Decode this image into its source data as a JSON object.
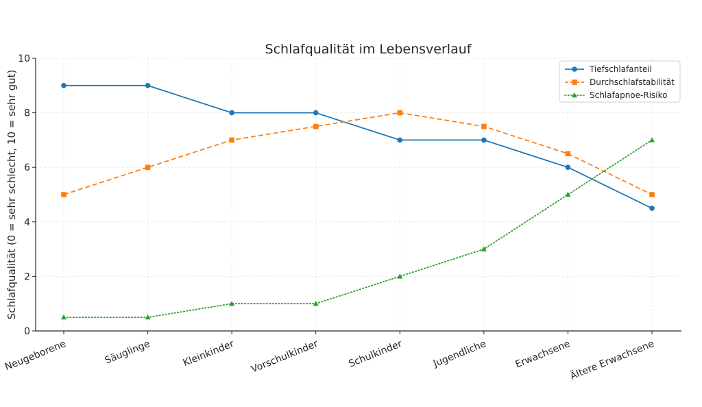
{
  "chart_data": {
    "type": "line",
    "title": "Schlafqualität im Lebensverlauf",
    "xlabel": "",
    "ylabel": "Schlafqualität (0 = sehr schlecht, 10 = sehr gut)",
    "categories": [
      "Neugeborene",
      "Säuglinge",
      "Kleinkinder",
      "Vorschulkinder",
      "Schulkinder",
      "Jugendliche",
      "Erwachsene",
      "Ältere Erwachsene"
    ],
    "ylim": [
      0,
      10
    ],
    "yticks": [
      0,
      2,
      4,
      6,
      8,
      10
    ],
    "grid": true,
    "legend_position": "top-right",
    "series": [
      {
        "name": "Tiefschlafanteil",
        "color": "#1f77b4",
        "linestyle": "solid",
        "marker": "circle",
        "values": [
          9,
          9,
          8,
          8,
          7,
          7,
          6,
          4.5
        ]
      },
      {
        "name": "Durchschlafstabilität",
        "color": "#ff7f0e",
        "linestyle": "dashed",
        "marker": "square",
        "values": [
          5,
          6,
          7,
          7.5,
          8,
          7.5,
          6.5,
          5
        ]
      },
      {
        "name": "Schlafapnoe-Risiko",
        "color": "#2ca02c",
        "linestyle": "dotted",
        "marker": "triangle",
        "values": [
          0.5,
          0.5,
          1,
          1,
          2,
          3,
          5,
          7
        ]
      }
    ]
  }
}
